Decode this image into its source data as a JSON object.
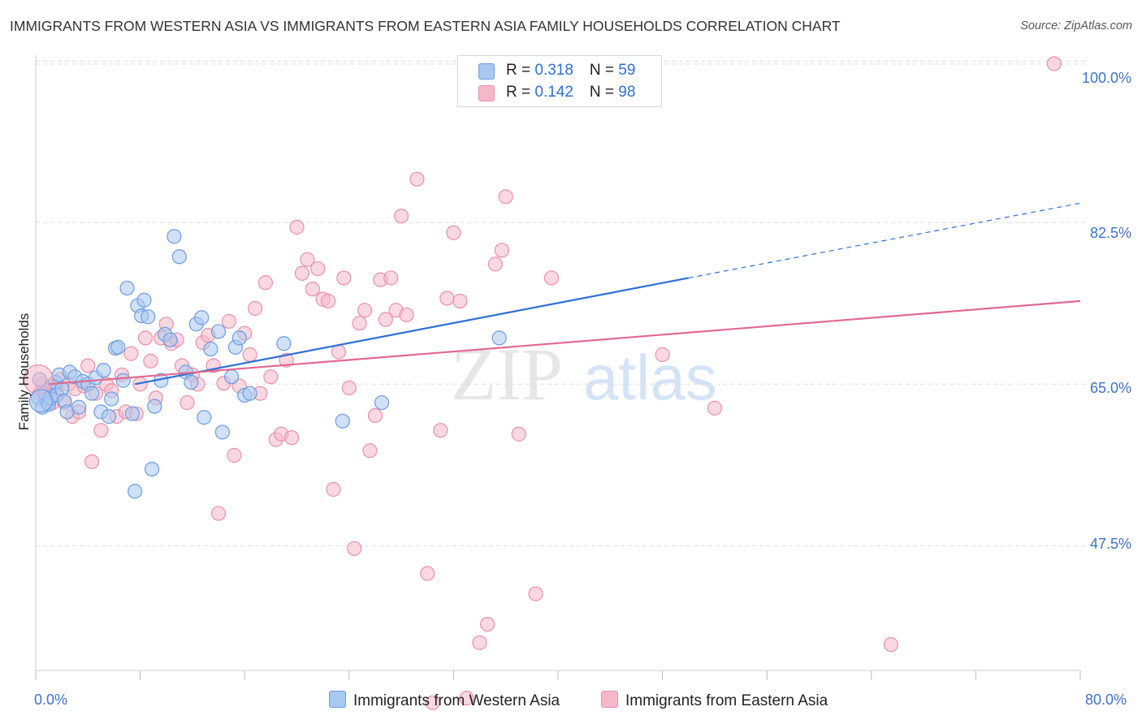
{
  "title": "IMMIGRANTS FROM WESTERN ASIA VS IMMIGRANTS FROM EASTERN ASIA FAMILY HOUSEHOLDS CORRELATION CHART",
  "source": "Source: ZipAtlas.com",
  "watermark": {
    "zip": "ZIP",
    "atlas": "atlas"
  },
  "legend": {
    "blue": {
      "r_label": "R = ",
      "r_value": "0.318",
      "n_label": "N = ",
      "n_value": "59"
    },
    "pink": {
      "r_label": "R = ",
      "r_value": "0.142",
      "n_label": "N = ",
      "n_value": "98"
    }
  },
  "colors": {
    "blue_fill": "#a9c8f0",
    "blue_stroke": "#6d9be0",
    "blue_line": "#2e6fd6",
    "pink_fill": "#f5b8c9",
    "pink_stroke": "#e890aa",
    "pink_line": "#e06a91",
    "axis_label": "#3d72c9",
    "grid": "#dddddd"
  },
  "chart_data": {
    "type": "scatter",
    "title": "IMMIGRANTS FROM WESTERN ASIA VS IMMIGRANTS FROM EASTERN ASIA FAMILY HOUSEHOLDS CORRELATION CHART",
    "xlabel": "",
    "ylabel": "Family Households",
    "xlim": [
      0,
      80
    ],
    "ylim": [
      34,
      101.5
    ],
    "x_tick_labels": [
      "0.0%",
      "80.0%"
    ],
    "y_tick_labels": [
      "47.5%",
      "65.0%",
      "82.5%",
      "100.0%"
    ],
    "y_ticks": [
      47.5,
      65.0,
      82.5,
      100.0
    ],
    "grid": true,
    "legend_position": "top-center",
    "series": [
      {
        "name": "Immigrants from Western Asia",
        "color": "#a9c8f0",
        "points": [
          [
            0.2,
            63.5
          ],
          [
            0.3,
            65.5
          ],
          [
            0.5,
            62.5
          ],
          [
            0.7,
            64.0
          ],
          [
            0.9,
            63.0
          ],
          [
            1.0,
            62.8
          ],
          [
            1.1,
            63.5
          ],
          [
            1.3,
            64.8
          ],
          [
            1.5,
            65.2
          ],
          [
            1.6,
            63.8
          ],
          [
            1.8,
            66.0
          ],
          [
            2.0,
            64.5
          ],
          [
            2.2,
            63.2
          ],
          [
            2.4,
            62.0
          ],
          [
            2.6,
            66.3
          ],
          [
            3.0,
            65.8
          ],
          [
            3.3,
            62.5
          ],
          [
            3.6,
            65.3
          ],
          [
            4.0,
            65.0
          ],
          [
            4.3,
            64.0
          ],
          [
            4.6,
            65.7
          ],
          [
            5.0,
            62.0
          ],
          [
            5.2,
            66.5
          ],
          [
            5.6,
            61.5
          ],
          [
            5.8,
            63.4
          ],
          [
            6.1,
            68.9
          ],
          [
            6.3,
            69.0
          ],
          [
            6.7,
            65.4
          ],
          [
            7.0,
            75.4
          ],
          [
            7.4,
            61.8
          ],
          [
            7.6,
            53.4
          ],
          [
            7.8,
            73.5
          ],
          [
            8.1,
            72.4
          ],
          [
            8.3,
            74.1
          ],
          [
            8.6,
            72.3
          ],
          [
            8.9,
            55.8
          ],
          [
            9.1,
            62.6
          ],
          [
            9.6,
            65.4
          ],
          [
            9.9,
            70.4
          ],
          [
            10.3,
            69.8
          ],
          [
            10.6,
            81.0
          ],
          [
            11.0,
            78.8
          ],
          [
            11.5,
            66.3
          ],
          [
            11.9,
            65.2
          ],
          [
            12.3,
            71.5
          ],
          [
            12.7,
            72.2
          ],
          [
            12.9,
            61.4
          ],
          [
            13.4,
            68.8
          ],
          [
            14.0,
            70.7
          ],
          [
            14.3,
            59.8
          ],
          [
            15.0,
            65.8
          ],
          [
            15.3,
            69.0
          ],
          [
            15.6,
            70.0
          ],
          [
            16.0,
            63.8
          ],
          [
            16.4,
            64.0
          ],
          [
            19.0,
            69.4
          ],
          [
            23.5,
            61.0
          ],
          [
            26.5,
            63.0
          ],
          [
            35.5,
            70.0
          ]
        ]
      },
      {
        "name": "Immigrants from Eastern Asia",
        "color": "#f5b8c9",
        "points": [
          [
            0.3,
            64.0
          ],
          [
            0.5,
            65.0
          ],
          [
            0.8,
            63.5
          ],
          [
            1.0,
            64.5
          ],
          [
            1.3,
            63.0
          ],
          [
            1.6,
            64.0
          ],
          [
            1.9,
            65.5
          ],
          [
            2.2,
            63.0
          ],
          [
            2.5,
            65.0
          ],
          [
            2.8,
            61.5
          ],
          [
            3.0,
            64.5
          ],
          [
            3.3,
            62.0
          ],
          [
            3.7,
            64.8
          ],
          [
            4.0,
            67.0
          ],
          [
            4.3,
            56.6
          ],
          [
            4.6,
            64.0
          ],
          [
            5.0,
            60.0
          ],
          [
            5.4,
            65.0
          ],
          [
            5.8,
            64.3
          ],
          [
            6.2,
            61.5
          ],
          [
            6.6,
            66.0
          ],
          [
            6.9,
            62.0
          ],
          [
            7.3,
            68.3
          ],
          [
            7.7,
            61.8
          ],
          [
            8.0,
            65.0
          ],
          [
            8.4,
            70.0
          ],
          [
            8.8,
            67.5
          ],
          [
            9.2,
            63.5
          ],
          [
            9.6,
            70.0
          ],
          [
            10.0,
            71.5
          ],
          [
            10.4,
            69.4
          ],
          [
            10.8,
            69.8
          ],
          [
            11.2,
            67.0
          ],
          [
            11.6,
            63.0
          ],
          [
            12.0,
            66.0
          ],
          [
            12.4,
            65.0
          ],
          [
            12.8,
            69.5
          ],
          [
            13.2,
            70.3
          ],
          [
            13.6,
            67.0
          ],
          [
            14.0,
            51.0
          ],
          [
            14.4,
            65.1
          ],
          [
            14.8,
            71.8
          ],
          [
            15.2,
            57.3
          ],
          [
            15.6,
            64.8
          ],
          [
            16.0,
            70.5
          ],
          [
            16.4,
            68.2
          ],
          [
            16.8,
            73.2
          ],
          [
            17.2,
            64.0
          ],
          [
            17.6,
            76.0
          ],
          [
            18.0,
            65.8
          ],
          [
            18.4,
            59.0
          ],
          [
            18.8,
            59.6
          ],
          [
            19.2,
            67.6
          ],
          [
            19.6,
            59.2
          ],
          [
            20.0,
            82.0
          ],
          [
            20.4,
            77.0
          ],
          [
            20.8,
            78.5
          ],
          [
            21.2,
            75.3
          ],
          [
            21.6,
            77.5
          ],
          [
            22.0,
            74.2
          ],
          [
            22.4,
            74.0
          ],
          [
            22.8,
            53.6
          ],
          [
            23.2,
            68.5
          ],
          [
            23.6,
            76.5
          ],
          [
            24.0,
            64.6
          ],
          [
            24.4,
            47.2
          ],
          [
            24.8,
            71.6
          ],
          [
            25.2,
            73.0
          ],
          [
            25.6,
            57.8
          ],
          [
            26.0,
            61.6
          ],
          [
            26.4,
            76.3
          ],
          [
            26.8,
            72.0
          ],
          [
            27.2,
            76.5
          ],
          [
            27.6,
            73.0
          ],
          [
            28.0,
            83.2
          ],
          [
            28.4,
            72.5
          ],
          [
            29.2,
            87.2
          ],
          [
            30.0,
            44.5
          ],
          [
            30.4,
            30.5
          ],
          [
            31.0,
            60.0
          ],
          [
            31.5,
            74.3
          ],
          [
            32.0,
            81.4
          ],
          [
            32.5,
            74.0
          ],
          [
            33.0,
            31.0
          ],
          [
            34.0,
            37.0
          ],
          [
            34.6,
            39.0
          ],
          [
            35.2,
            78.0
          ],
          [
            35.7,
            79.5
          ],
          [
            36.0,
            85.3
          ],
          [
            37.0,
            59.6
          ],
          [
            38.3,
            42.3
          ],
          [
            39.5,
            76.5
          ],
          [
            48.0,
            68.2
          ],
          [
            52.0,
            62.4
          ],
          [
            65.5,
            36.8
          ],
          [
            78.0,
            99.7
          ]
        ]
      }
    ],
    "trend_lines": [
      {
        "series": "Immigrants from Western Asia",
        "x0": 7.6,
        "y0": 65.0,
        "x1": 50.0,
        "y1": 76.5,
        "dashed_to_x": 80.0,
        "dashed_to_y": 84.6
      },
      {
        "series": "Immigrants from Eastern Asia",
        "x0": 1.0,
        "y0": 65.0,
        "x1": 80.0,
        "y1": 74.0
      }
    ]
  },
  "bottom_legend": {
    "blue_label": "Immigrants from Western Asia",
    "pink_label": "Immigrants from Eastern Asia"
  }
}
